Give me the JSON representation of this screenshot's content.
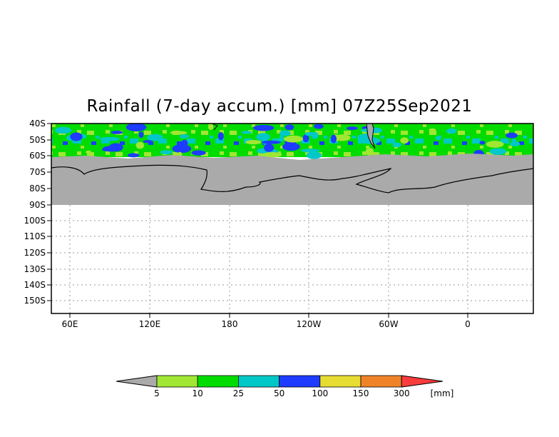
{
  "title": "Rainfall (7-day accum.) [mm] 07Z25Sep2021",
  "map": {
    "lat_ticks": [
      "40S",
      "50S",
      "60S",
      "70S",
      "80S",
      "90S",
      "100S",
      "110S",
      "120S",
      "130S",
      "140S",
      "150S"
    ],
    "lon_ticks": [
      "60E",
      "120E",
      "180",
      "120W",
      "60W",
      "0"
    ],
    "land_color": "#aaaaaa",
    "grid": "dotted"
  },
  "colorbar": {
    "tick_labels": [
      "5",
      "10",
      "25",
      "50",
      "100",
      "150",
      "300"
    ],
    "unit": "[mm]",
    "colors": [
      "#aaaaaa",
      "#a0e632",
      "#00dc00",
      "#00c8c8",
      "#1e3cff",
      "#e6dc32",
      "#f08228",
      "#fa3c3c"
    ]
  }
}
